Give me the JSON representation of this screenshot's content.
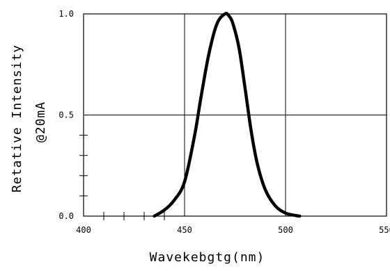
{
  "chart_data": {
    "type": "line",
    "title": "",
    "xlabel": "Wavekebgtg(nm)",
    "ylabel_lines": [
      "Retative Intensity",
      "@20mA"
    ],
    "xlim": [
      400,
      550
    ],
    "ylim": [
      0.0,
      1.0
    ],
    "x_ticks": [
      "400",
      "450",
      "500",
      "550"
    ],
    "y_ticks": [
      "0.0",
      "0.5",
      "1.0"
    ],
    "x_tick_values": [
      400,
      450,
      500,
      550
    ],
    "y_tick_values": [
      0.0,
      0.5,
      1.0
    ],
    "grid": true,
    "legend": "none",
    "series": [
      {
        "color": "#000000",
        "x": [
          435,
          440,
          445,
          450,
          455,
          458,
          462,
          466,
          470,
          472,
          474,
          477,
          480,
          483,
          486,
          490,
          495,
          500,
          505,
          507
        ],
        "y": [
          0.0,
          0.03,
          0.08,
          0.17,
          0.4,
          0.58,
          0.8,
          0.95,
          1.0,
          0.99,
          0.95,
          0.83,
          0.63,
          0.42,
          0.26,
          0.13,
          0.05,
          0.015,
          0.003,
          0.0
        ]
      }
    ]
  }
}
